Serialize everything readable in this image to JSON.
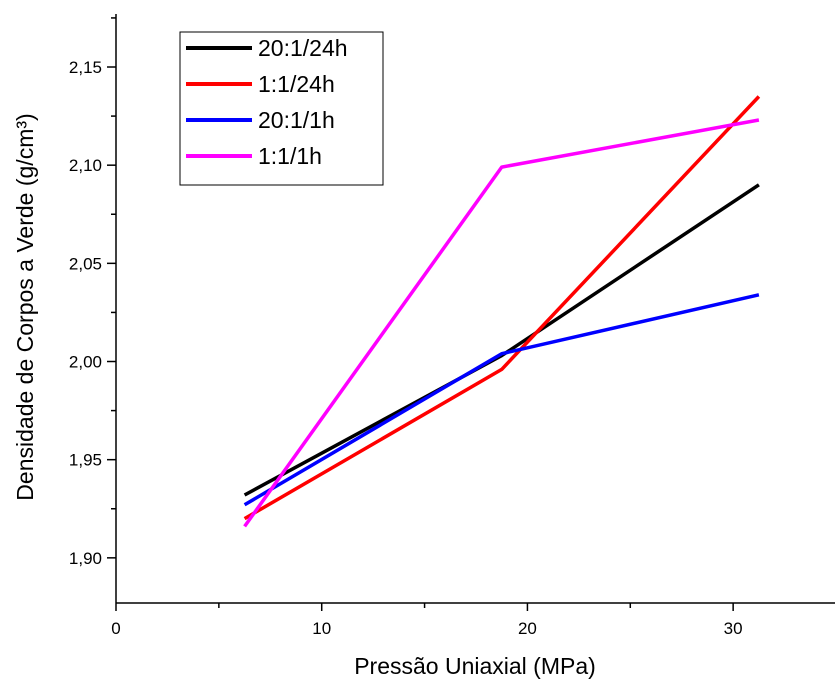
{
  "chart_data": {
    "type": "line",
    "title": "",
    "xlabel": "Pressão Uniaxial (MPa)",
    "ylabel": "Densidade de Corpos a Verde (g/cm³)",
    "xlim": [
      0,
      35
    ],
    "ylim": [
      1.877,
      2.177
    ],
    "x_ticks": [
      0,
      10,
      20,
      30
    ],
    "x_tick_labels": [
      "0",
      "10",
      "20",
      "30"
    ],
    "y_ticks": [
      1.9,
      1.95,
      2.0,
      2.05,
      2.1,
      2.15
    ],
    "y_tick_labels": [
      "1,90",
      "1,95",
      "2,00",
      "2,05",
      "2,10",
      "2,15"
    ],
    "grid": false,
    "legend_position": "top-left",
    "series": [
      {
        "name": "20:1/24h",
        "color": "#000000",
        "x": [
          6.25,
          18.75,
          31.25
        ],
        "y": [
          1.932,
          2.003,
          2.09
        ]
      },
      {
        "name": "1:1/24h",
        "color": "#ff0000",
        "x": [
          6.25,
          18.75,
          31.25
        ],
        "y": [
          1.92,
          1.996,
          2.135
        ]
      },
      {
        "name": "20:1/1h",
        "color": "#0000ff",
        "x": [
          6.25,
          18.75,
          31.25
        ],
        "y": [
          1.927,
          2.004,
          2.034
        ]
      },
      {
        "name": "1:1/1h",
        "color": "#ff00ff",
        "x": [
          6.25,
          18.75,
          31.25
        ],
        "y": [
          1.916,
          2.099,
          2.123
        ]
      }
    ]
  }
}
